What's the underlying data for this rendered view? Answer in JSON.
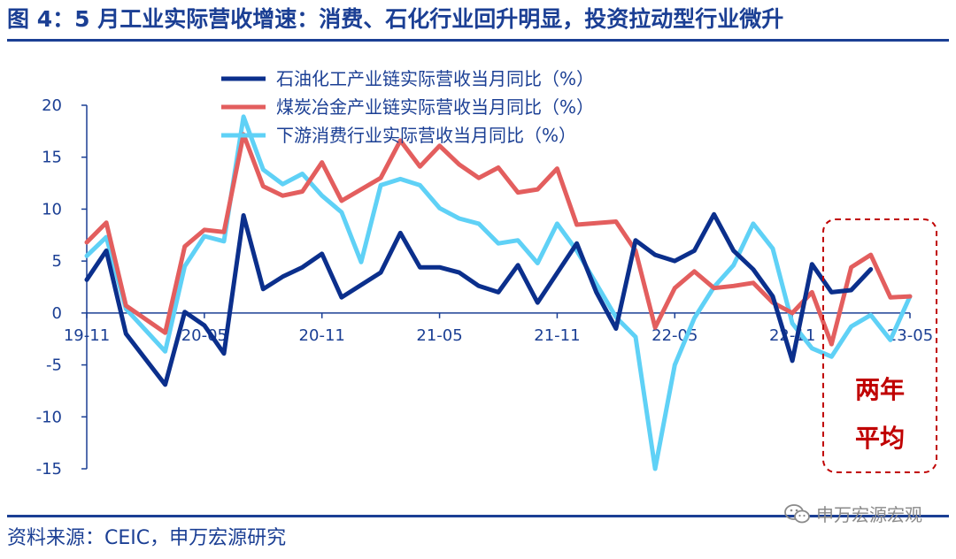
{
  "title": "图 4：5 月工业实际营收增速：消费、石化行业回升明显，投资拉动型行业微升",
  "source": "资料来源：CEIC，申万宏源研究",
  "watermark": {
    "text": "申万宏源宏观",
    "icon": "wechat-icon"
  },
  "chart_data": {
    "type": "line",
    "title": "",
    "xlabel": "",
    "ylabel": "",
    "ylim": [
      -15,
      20
    ],
    "yticks": [
      20,
      15,
      10,
      5,
      0,
      -5,
      -10,
      -15
    ],
    "x_tick_labels": [
      "19-11",
      "20-05",
      "20-11",
      "21-05",
      "21-11",
      "22-05",
      "22-11",
      "23-05"
    ],
    "x_tick_indices": [
      0,
      6,
      12,
      18,
      24,
      30,
      36,
      42
    ],
    "grid": false,
    "legend_position": "top",
    "categories": [
      "19-11",
      "19-12",
      "20-01",
      "20-02",
      "20-03",
      "20-04",
      "20-05",
      "20-06",
      "20-07",
      "20-08",
      "20-09",
      "20-10",
      "20-11",
      "20-12",
      "21-01",
      "21-02",
      "21-03",
      "21-04",
      "21-05",
      "21-06",
      "21-07",
      "21-08",
      "21-09",
      "21-10",
      "21-11",
      "21-12",
      "22-01",
      "22-02",
      "22-03",
      "22-04",
      "22-05",
      "22-06",
      "22-07",
      "22-08",
      "22-09",
      "22-10",
      "22-11",
      "22-12",
      "23-01",
      "23-02",
      "23-03",
      "23-04",
      "23-05"
    ],
    "series": [
      {
        "name": "石油化工产业链实际营收当月同比（%）",
        "color": "#0b2f8c",
        "values": [
          3.2,
          6.0,
          -2.0,
          null,
          -6.9,
          0.1,
          -1.2,
          -3.9,
          9.4,
          2.3,
          3.5,
          4.4,
          5.7,
          1.5,
          null,
          3.9,
          7.7,
          4.4,
          4.4,
          3.9,
          2.6,
          2.0,
          4.6,
          1.0,
          null,
          6.7,
          2.0,
          -1.5,
          7.0,
          5.6,
          5.0,
          6.0,
          9.5,
          6.0,
          4.2,
          1.6,
          -4.6,
          4.7,
          2.0,
          2.2,
          4.2,
          null,
          null
        ]
      },
      {
        "name": "煤炭冶金产业链实际营收当月同比（%）",
        "color": "#e35e5e",
        "values": [
          6.8,
          8.7,
          0.7,
          null,
          -1.9,
          6.4,
          8.0,
          7.8,
          17.2,
          12.2,
          11.3,
          11.7,
          14.5,
          10.8,
          null,
          13.0,
          16.6,
          14.1,
          16.1,
          14.3,
          13.0,
          14.0,
          11.6,
          11.9,
          13.9,
          8.5,
          null,
          8.8,
          6.0,
          -1.4,
          2.4,
          4.0,
          2.4,
          2.6,
          2.9,
          1.0,
          0.0,
          2.0,
          -3.0,
          4.4,
          5.6,
          1.5,
          1.6
        ]
      },
      {
        "name": "下游消费行业实际营收当月同比（%）",
        "color": "#5fd1f6",
        "values": [
          5.5,
          7.3,
          0.4,
          null,
          -3.7,
          4.5,
          7.4,
          6.9,
          18.9,
          13.8,
          12.4,
          13.4,
          11.3,
          9.7,
          4.9,
          12.3,
          12.9,
          12.3,
          10.1,
          9.1,
          8.6,
          6.7,
          7.0,
          4.8,
          8.6,
          6.0,
          null,
          -0.4,
          -2.3,
          -15.0,
          -5.0,
          -0.5,
          2.5,
          4.6,
          8.6,
          6.2,
          -1.0,
          -3.4,
          -4.2,
          -1.3,
          -0.2,
          -2.6,
          1.6
        ]
      }
    ],
    "annotation": {
      "line1": "两年",
      "line2": "平均",
      "color": "#c00000"
    }
  }
}
